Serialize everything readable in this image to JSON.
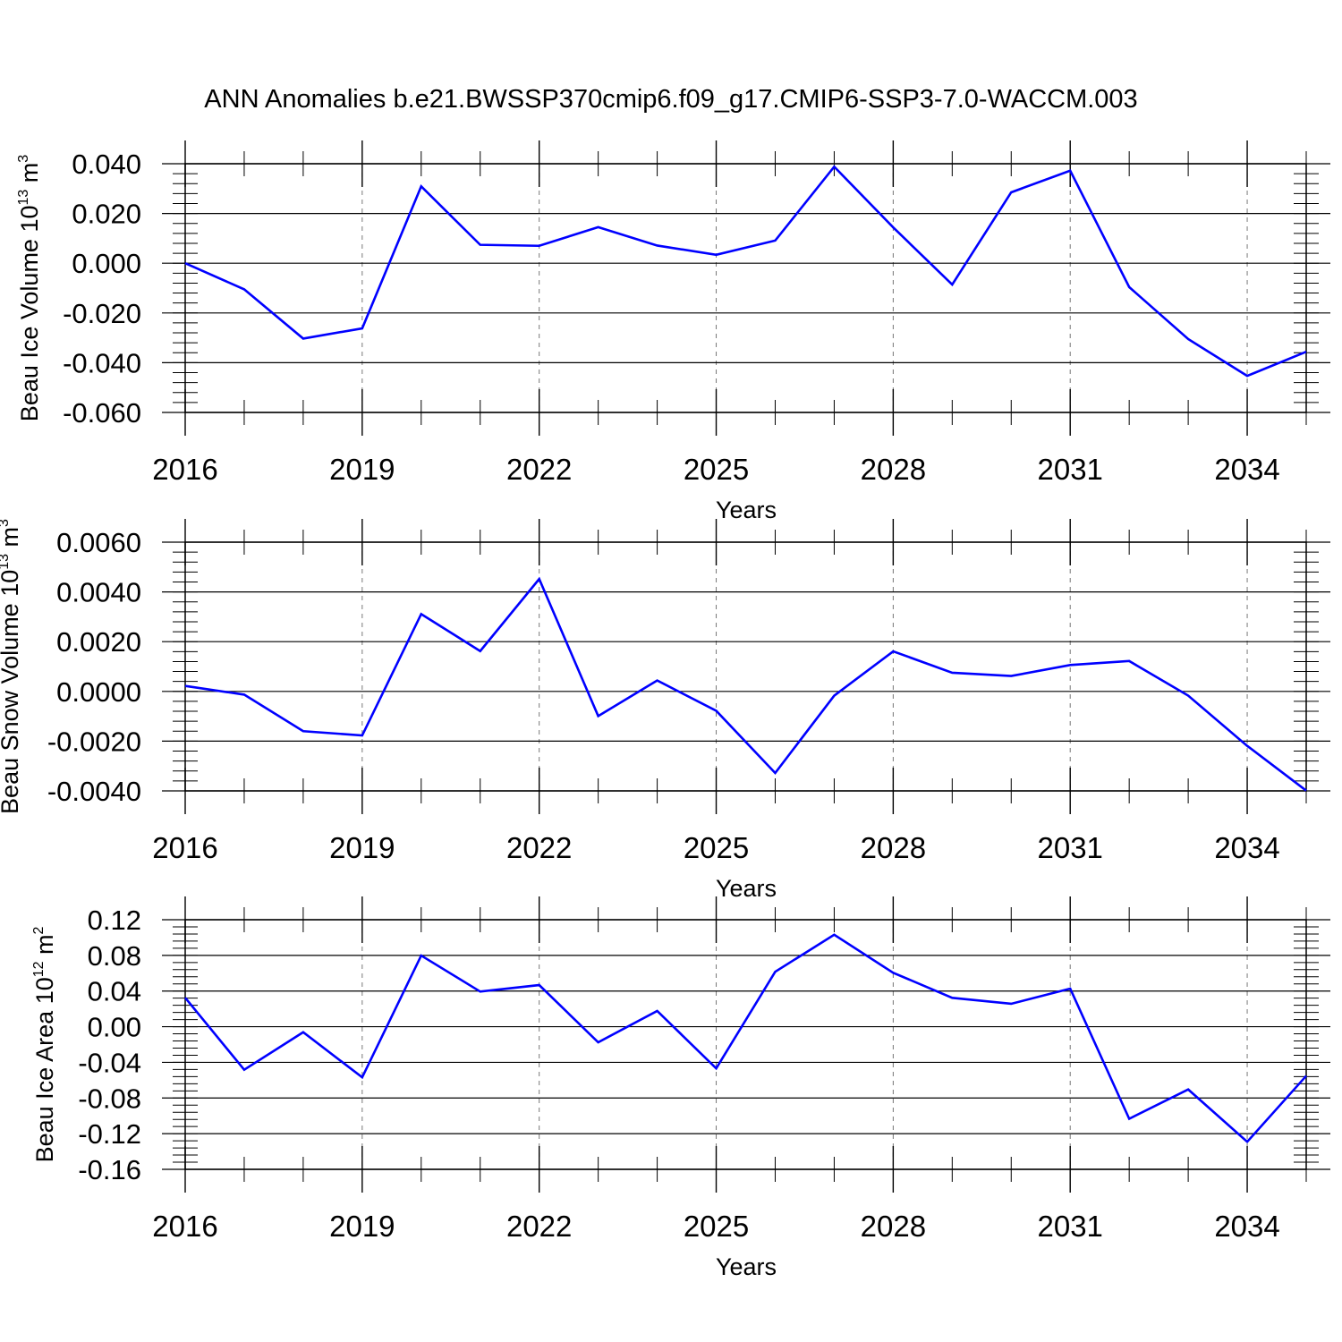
{
  "title": "ANN Anomalies b.e21.BWSSP370cmip6.f09_g17.CMIP6-SSP3-7.0-WACCM.003",
  "chart_data": [
    {
      "type": "line",
      "ylabel_main": "Beau Ice Volume 10",
      "ylabel_exp": "13",
      "ylabel_unit": " m",
      "ylabel_unit_exp": "3",
      "xlabel": "Years",
      "x_ticks": [
        "2016",
        "2019",
        "2022",
        "2025",
        "2028",
        "2031",
        "2034"
      ],
      "y_ticks": [
        "0.040",
        "0.020",
        "0.000",
        "-0.020",
        "-0.040",
        "-0.060"
      ],
      "y_tick_values": [
        0.04,
        0.02,
        0.0,
        -0.02,
        -0.04,
        -0.06
      ],
      "xlim": [
        2016,
        2035
      ],
      "ylim": [
        -0.06,
        0.04
      ],
      "line_color": "#0000ff",
      "x": [
        2016,
        2017,
        2018,
        2019,
        2020,
        2021,
        2022,
        2023,
        2024,
        2025,
        2026,
        2027,
        2028,
        2029,
        2030,
        2031,
        2032,
        2033,
        2034,
        2035
      ],
      "values": [
        0.0,
        -0.0105,
        -0.0303,
        -0.0262,
        0.0309,
        0.0074,
        0.007,
        0.0145,
        0.0071,
        0.0034,
        0.0091,
        0.0388,
        0.0144,
        -0.0086,
        0.0285,
        0.0372,
        -0.0096,
        -0.0305,
        -0.0453,
        -0.0356
      ]
    },
    {
      "type": "line",
      "ylabel_main": "Beau Snow Volume 10",
      "ylabel_exp": "13",
      "ylabel_unit": " m",
      "ylabel_unit_exp": "3",
      "xlabel": "Years",
      "x_ticks": [
        "2016",
        "2019",
        "2022",
        "2025",
        "2028",
        "2031",
        "2034"
      ],
      "y_ticks": [
        "0.0060",
        "0.0040",
        "0.0020",
        "0.0000",
        "-0.0020",
        "-0.0040"
      ],
      "y_tick_values": [
        0.006,
        0.004,
        0.002,
        0.0,
        -0.002,
        -0.004
      ],
      "xlim": [
        2016,
        2035
      ],
      "ylim": [
        -0.004,
        0.006
      ],
      "line_color": "#0000ff",
      "x": [
        2016,
        2017,
        2018,
        2019,
        2020,
        2021,
        2022,
        2023,
        2024,
        2025,
        2026,
        2027,
        2028,
        2029,
        2030,
        2031,
        2032,
        2033,
        2034,
        2035
      ],
      "values": [
        0.00022,
        -0.00013,
        -0.0016,
        -0.00177,
        0.00311,
        0.00162,
        0.00452,
        -0.00099,
        0.00044,
        -0.00078,
        -0.00328,
        -0.00017,
        0.00161,
        0.00075,
        0.00062,
        0.00106,
        0.00122,
        -0.00017,
        -0.00219,
        -0.00399
      ]
    },
    {
      "type": "line",
      "ylabel_main": "Beau Ice Area 10",
      "ylabel_exp": "12",
      "ylabel_unit": " m",
      "ylabel_unit_exp": "2",
      "xlabel": "Years",
      "x_ticks": [
        "2016",
        "2019",
        "2022",
        "2025",
        "2028",
        "2031",
        "2034"
      ],
      "y_ticks": [
        "0.12",
        "0.08",
        "0.04",
        "0.00",
        "-0.04",
        "-0.08",
        "-0.12",
        "-0.16"
      ],
      "y_tick_values": [
        0.12,
        0.08,
        0.04,
        0.0,
        -0.04,
        -0.08,
        -0.12,
        -0.16
      ],
      "xlim": [
        2016,
        2035
      ],
      "ylim": [
        -0.16,
        0.12
      ],
      "line_color": "#0000ff",
      "x": [
        2016,
        2017,
        2018,
        2019,
        2020,
        2021,
        2022,
        2023,
        2024,
        2025,
        2026,
        2027,
        2028,
        2029,
        2030,
        2031,
        2032,
        2033,
        2034,
        2035
      ],
      "values": [
        0.0325,
        -0.0483,
        -0.0062,
        -0.0568,
        0.0798,
        0.0394,
        0.0467,
        -0.0175,
        0.0177,
        -0.0468,
        0.0616,
        0.1032,
        0.0605,
        0.0324,
        0.0257,
        0.0427,
        -0.1033,
        -0.0704,
        -0.1291,
        -0.0552
      ]
    }
  ]
}
